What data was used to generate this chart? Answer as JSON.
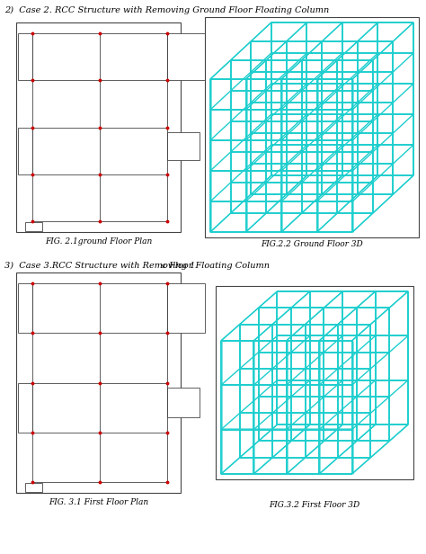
{
  "bg_color": "#ffffff",
  "title1": "2)  Case 2. RCC Structure with Removing Ground Floor Floating Column",
  "title2_pre": "3)  Case 3.RCC Structure with Removing 1",
  "title2_super": "st",
  "title2_post": " Floor Floating Column",
  "fig_label_1a": "FIG. 2.1ground Floor Plan",
  "fig_label_1b": "FIG.2.2 Ground Floor 3D",
  "fig_label_2a": "FIG. 3.1 First Floor Plan",
  "fig_label_2b": "FIG.3.2 First Floor 3D",
  "cyan_color": "#1ECECE",
  "red_dot_color": "#CC0000",
  "line_color": "#444444",
  "font_size_title": 7.0,
  "font_size_label": 6.5
}
